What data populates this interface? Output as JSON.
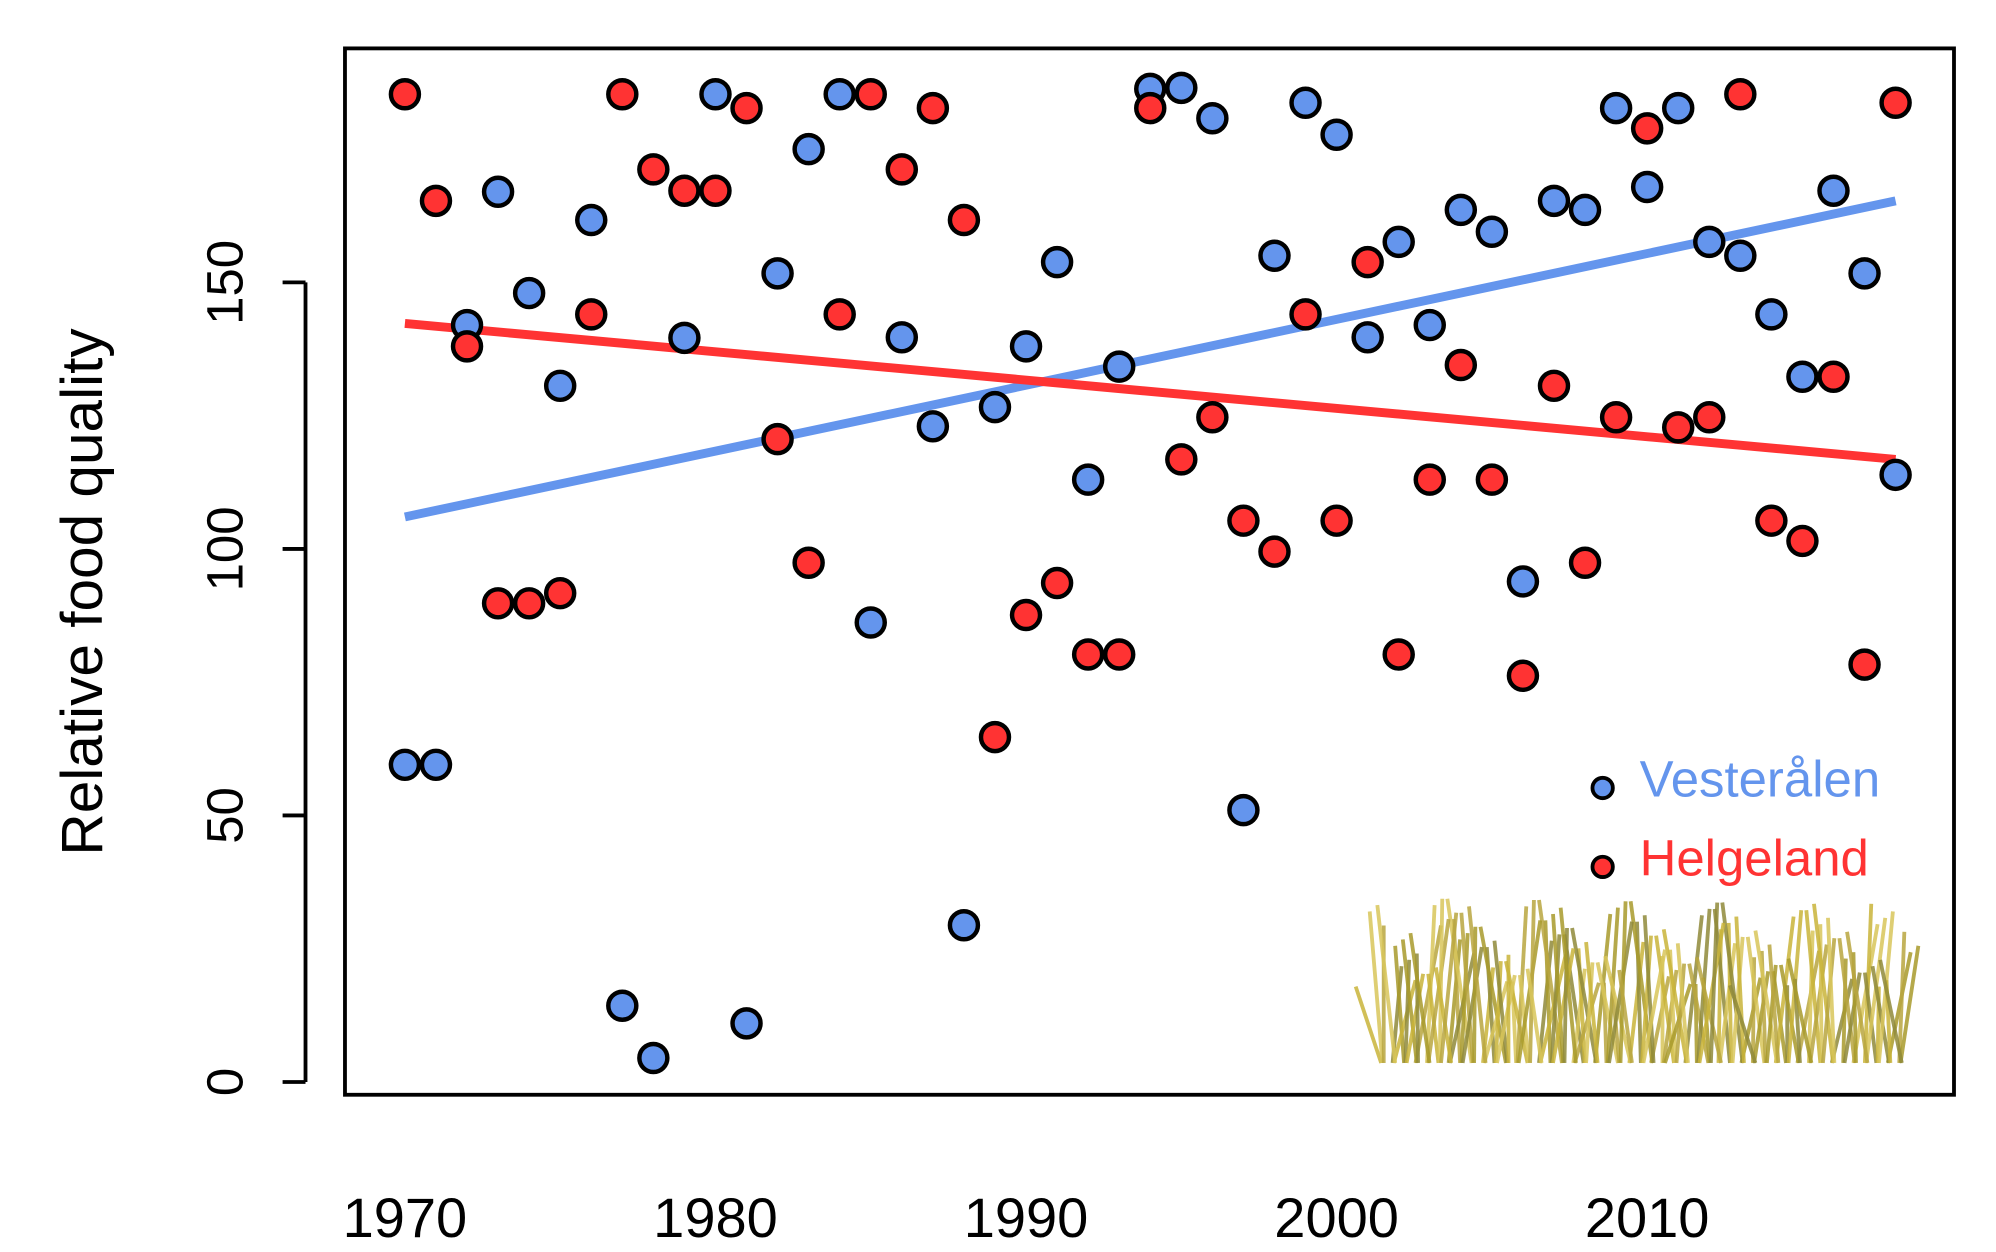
{
  "chart_data": {
    "type": "scatter",
    "y_label": "Relative food quality",
    "x": [
      1970,
      1971,
      1972,
      1973,
      1974,
      1975,
      1976,
      1977,
      1978,
      1979,
      1980,
      1981,
      1982,
      1983,
      1984,
      1985,
      1986,
      1987,
      1988,
      1989,
      1990,
      1991,
      1992,
      1993,
      1994,
      1995,
      1996,
      1997,
      1998,
      1999,
      2000,
      2001,
      2002,
      2003,
      2004,
      2005,
      2006,
      2007,
      2008,
      2009,
      2010,
      2011,
      2012,
      2013,
      2014,
      2015,
      2016,
      2017,
      2018
    ],
    "series": [
      {
        "name": "Vesterålen",
        "color": "#6495ed",
        "values": [
          59.5,
          59.5,
          142,
          167,
          148,
          130.6,
          161.7,
          14.3,
          4.5,
          139.6,
          185.3,
          11,
          151.7,
          175,
          185.3,
          86.2,
          139.7,
          123,
          29.4,
          126.6,
          138,
          153.8,
          113,
          134.2,
          186.3,
          186.5,
          180.8,
          51,
          155,
          183.7,
          177.7,
          139.7,
          157.6,
          142,
          163.6,
          159.5,
          93.9,
          165.3,
          163.6,
          182.7,
          167.9,
          182.7,
          157.6,
          155,
          144,
          132.3,
          167.2,
          151.7,
          113.9
        ],
        "trend_x": [
          1970,
          2018
        ],
        "trend": [
          106,
          165.3
        ]
      },
      {
        "name": "Helgeland",
        "color": "#ff3333",
        "values": [
          185.3,
          165.3,
          138,
          89.8,
          89.8,
          91.7,
          144,
          185.3,
          171.2,
          167.2,
          167.2,
          182.7,
          120.6,
          97.4,
          144,
          185.3,
          171.2,
          182.7,
          161.7,
          64.7,
          87.6,
          93.6,
          80.2,
          80.2,
          182.7,
          116.8,
          124.7,
          105.3,
          99.5,
          144,
          105.3,
          153.8,
          80.2,
          113,
          134.5,
          113,
          76.2,
          130.6,
          97.4,
          124.7,
          178.9,
          122.8,
          124.7,
          185.3,
          105.3,
          101.5,
          132.3,
          78.3,
          183.7
        ],
        "trend_x": [
          1970,
          2018
        ],
        "trend": [
          142.3,
          116.8
        ]
      }
    ],
    "xlim": [
      1968.07,
      2019.88
    ],
    "ylim": [
      -2.4,
      193.9
    ],
    "xticks": [
      1970,
      1980,
      1990,
      2000,
      2010
    ],
    "yticks": [
      0,
      50,
      100,
      150
    ],
    "legend": "bottom-right"
  }
}
